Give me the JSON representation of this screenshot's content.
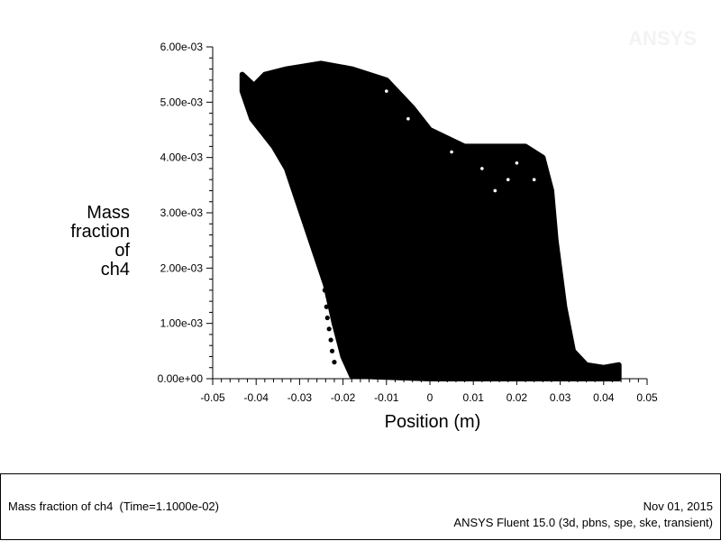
{
  "chart_data": {
    "type": "scatter",
    "title": "",
    "xlabel": "Position (m)",
    "ylabel_lines": [
      "Mass",
      "fraction",
      "of",
      "ch4"
    ],
    "xlim": [
      -0.05,
      0.05
    ],
    "ylim": [
      0,
      0.006
    ],
    "x_ticks": [
      -0.05,
      -0.04,
      -0.03,
      -0.02,
      -0.01,
      0,
      0.01,
      0.02,
      0.03,
      0.04,
      0.05
    ],
    "x_tick_labels": [
      "-0.05",
      "-0.04",
      "-0.03",
      "-0.02",
      "-0.01",
      "0",
      "0.01",
      "0.02",
      "0.03",
      "0.04",
      "0.05"
    ],
    "y_ticks": [
      0,
      0.001,
      0.002,
      0.003,
      0.004,
      0.005,
      0.006
    ],
    "y_tick_labels": [
      "0.00e+00",
      "1.00e-03",
      "2.00e-03",
      "3.00e-03",
      "4.00e-03",
      "5.00e-03",
      "6.00e-03"
    ],
    "grid": false,
    "marker_color": "#000000",
    "upper_envelope": [
      [
        -0.0432,
        0.0055
      ],
      [
        -0.0405,
        0.0053
      ],
      [
        -0.038,
        0.0055
      ],
      [
        -0.033,
        0.0056
      ],
      [
        -0.025,
        0.0057
      ],
      [
        -0.018,
        0.0056
      ],
      [
        -0.01,
        0.0054
      ],
      [
        -0.004,
        0.0049
      ],
      [
        0.0,
        0.0045
      ],
      [
        0.008,
        0.0042
      ],
      [
        0.016,
        0.0042
      ],
      [
        0.022,
        0.0042
      ],
      [
        0.026,
        0.004
      ],
      [
        0.028,
        0.0034
      ],
      [
        0.029,
        0.0025
      ],
      [
        0.031,
        0.0013
      ],
      [
        0.033,
        0.0005
      ],
      [
        0.036,
        0.00025
      ],
      [
        0.04,
        0.0002
      ],
      [
        0.0435,
        0.00025
      ]
    ],
    "lower_envelope": [
      [
        -0.0432,
        0.0052
      ],
      [
        -0.041,
        0.0047
      ],
      [
        -0.036,
        0.0042
      ],
      [
        -0.033,
        0.0038
      ],
      [
        -0.03,
        0.0031
      ],
      [
        -0.027,
        0.0024
      ],
      [
        -0.024,
        0.0017
      ],
      [
        -0.022,
        0.001
      ],
      [
        -0.02,
        0.0004
      ],
      [
        -0.018,
        5e-05
      ],
      [
        0.0,
        0.0
      ],
      [
        0.03,
        0.0
      ],
      [
        0.0435,
        0.0
      ]
    ]
  },
  "watermark": "ANSYS",
  "footer": {
    "caption": "Mass fraction of ch4  (Time=1.1000e-02)",
    "date": "Nov 01, 2015",
    "software": "ANSYS Fluent 15.0 (3d, pbns, spe, ske, transient)"
  }
}
